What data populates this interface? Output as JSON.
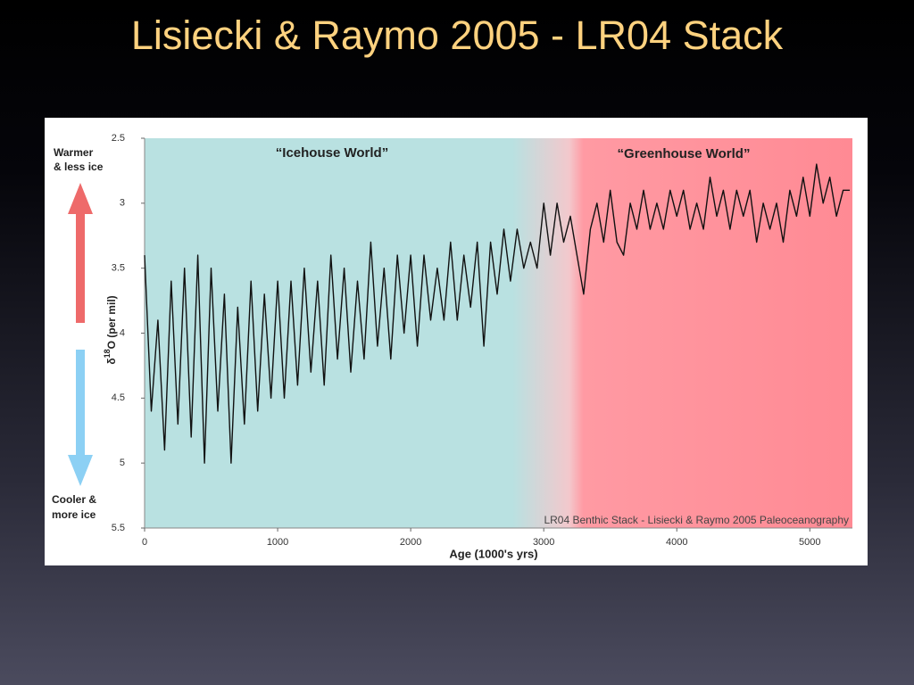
{
  "chart_data": {
    "type": "line",
    "title": "Lisiecki & Raymo 2005 - LR04 Stack",
    "x_label": "Age (1000's yrs)",
    "y_label_parts": [
      "δ",
      "18",
      "O (per mil)"
    ],
    "warmer_label": [
      "Warmer",
      "& less ice"
    ],
    "cooler_label": [
      "Cooler &",
      "more ice"
    ],
    "annotations": [
      "“Icehouse World”",
      "“Greenhouse World”",
      "LR04 Benthic Stack - Lisiecki & Raymo 2005 Paleoceanography"
    ],
    "color": "#111111",
    "xlim": [
      0,
      5320
    ],
    "xticks": [
      0,
      1000,
      2000,
      3000,
      4000,
      5000
    ],
    "ylim": [
      2.5,
      5.5
    ],
    "y_inverted": true,
    "yticks": [
      2.5,
      3,
      3.5,
      4,
      4.5,
      5,
      5.5
    ],
    "x": [
      0,
      50,
      100,
      150,
      200,
      250,
      300,
      350,
      400,
      450,
      500,
      550,
      600,
      650,
      700,
      750,
      800,
      850,
      900,
      950,
      1000,
      1050,
      1100,
      1150,
      1200,
      1250,
      1300,
      1350,
      1400,
      1450,
      1500,
      1550,
      1600,
      1650,
      1700,
      1750,
      1800,
      1850,
      1900,
      1950,
      2000,
      2050,
      2100,
      2150,
      2200,
      2250,
      2300,
      2350,
      2400,
      2450,
      2500,
      2550,
      2600,
      2650,
      2700,
      2750,
      2800,
      2850,
      2900,
      2950,
      3000,
      3050,
      3100,
      3150,
      3200,
      3250,
      3300,
      3350,
      3400,
      3450,
      3500,
      3550,
      3600,
      3650,
      3700,
      3750,
      3800,
      3850,
      3900,
      3950,
      4000,
      4050,
      4100,
      4150,
      4200,
      4250,
      4300,
      4350,
      4400,
      4450,
      4500,
      4550,
      4600,
      4650,
      4700,
      4750,
      4800,
      4850,
      4900,
      4950,
      5000,
      5050,
      5100,
      5150,
      5200,
      5250,
      5300
    ],
    "values": [
      3.4,
      4.6,
      3.9,
      4.9,
      3.6,
      4.7,
      3.5,
      4.8,
      3.4,
      5.0,
      3.5,
      4.6,
      3.7,
      5.0,
      3.8,
      4.7,
      3.6,
      4.6,
      3.7,
      4.5,
      3.6,
      4.5,
      3.6,
      4.4,
      3.5,
      4.3,
      3.6,
      4.4,
      3.4,
      4.2,
      3.5,
      4.3,
      3.6,
      4.2,
      3.3,
      4.1,
      3.5,
      4.2,
      3.4,
      4.0,
      3.4,
      4.1,
      3.4,
      3.9,
      3.5,
      3.9,
      3.3,
      3.9,
      3.4,
      3.8,
      3.3,
      4.1,
      3.3,
      3.7,
      3.2,
      3.6,
      3.2,
      3.5,
      3.3,
      3.5,
      3.0,
      3.4,
      3.0,
      3.3,
      3.1,
      3.4,
      3.7,
      3.2,
      3.0,
      3.3,
      2.9,
      3.3,
      3.4,
      3.0,
      3.2,
      2.9,
      3.2,
      3.0,
      3.2,
      2.9,
      3.1,
      2.9,
      3.2,
      3.0,
      3.2,
      2.8,
      3.1,
      2.9,
      3.2,
      2.9,
      3.1,
      2.9,
      3.3,
      3.0,
      3.2,
      3.0,
      3.3,
      2.9,
      3.1,
      2.8,
      3.1,
      2.7,
      3.0,
      2.8,
      3.1,
      2.9,
      2.9
    ]
  }
}
